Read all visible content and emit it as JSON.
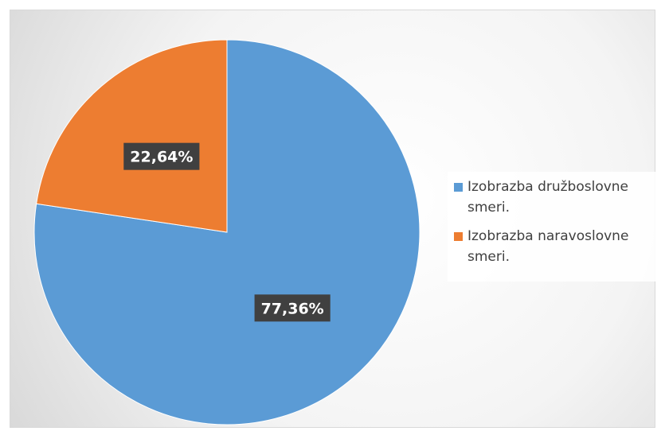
{
  "chart_data": {
    "type": "pie",
    "categories": [
      "Izobrazba družboslovne smeri.",
      "Izobrazba naravoslovne smeri."
    ],
    "values": [
      77.36,
      22.64
    ],
    "value_labels": [
      "77,36%",
      "22,64%"
    ],
    "colors": [
      "#5b9bd5",
      "#ed7d31"
    ],
    "legend": "right"
  }
}
